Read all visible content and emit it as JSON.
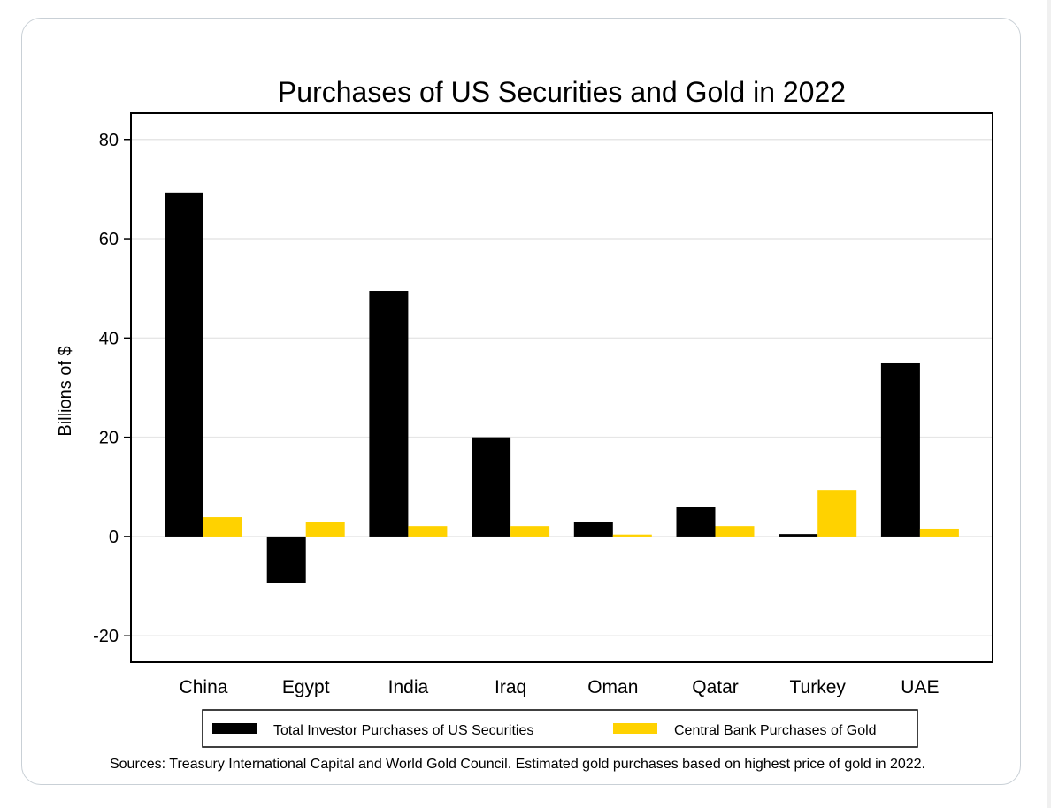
{
  "chart_data": {
    "type": "bar",
    "title": "Purchases of US Securities and Gold in 2022",
    "xlabel": "",
    "ylabel": "Billions of $",
    "ylim": [
      -25.3,
      85.3
    ],
    "yticks": [
      -20,
      0,
      20,
      40,
      60,
      80
    ],
    "grid": true,
    "categories": [
      "China",
      "Egypt",
      "India",
      "Iraq",
      "Oman",
      "Qatar",
      "Turkey",
      "UAE"
    ],
    "series": [
      {
        "name": "Total Investor Purchases of US Securities",
        "color": "#000000",
        "values": [
          69.3,
          -9.4,
          49.5,
          20.0,
          3.0,
          5.9,
          0.5,
          34.9
        ]
      },
      {
        "name": "Central Bank Purchases of Gold",
        "color": "#ffd200",
        "values": [
          3.9,
          3.0,
          2.1,
          2.1,
          0.4,
          2.1,
          9.4,
          1.6
        ]
      }
    ],
    "legend_position": "bottom",
    "note": "Sources: Treasury International Capital and World Gold Council.  Estimated gold purchases based on highest price of gold in 2022."
  }
}
